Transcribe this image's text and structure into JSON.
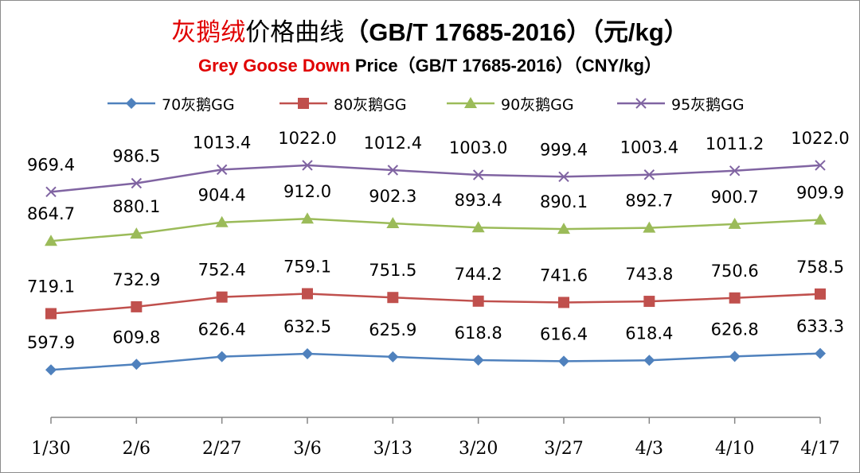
{
  "title_cn": {
    "accent": "灰鹅绒",
    "main": "价格曲线",
    "code": "（GB/T 17685-2016）（元/kg）"
  },
  "title_en": {
    "accent": "Grey Goose Down",
    "main": " Price（GB/T 17685-2016）（CNY/kg）"
  },
  "chart_data": {
    "type": "line",
    "categories": [
      "1/30",
      "2/6",
      "2/27",
      "3/6",
      "3/13",
      "3/20",
      "3/27",
      "4/3",
      "4/10",
      "4/17"
    ],
    "series": [
      {
        "name": "70灰鹅GG",
        "color": "#4f81bd",
        "marker": "diamond",
        "values": [
          597.9,
          609.8,
          626.4,
          632.5,
          625.9,
          618.8,
          616.4,
          618.4,
          626.8,
          633.3
        ]
      },
      {
        "name": "80灰鹅GG",
        "color": "#c0504d",
        "marker": "square",
        "values": [
          719.1,
          732.9,
          752.4,
          759.1,
          751.5,
          744.2,
          741.6,
          743.8,
          750.6,
          758.5
        ]
      },
      {
        "name": "90灰鹅GG",
        "color": "#9bbb59",
        "marker": "triangle",
        "values": [
          864.7,
          880.1,
          904.4,
          912.0,
          902.3,
          893.4,
          890.1,
          892.7,
          900.7,
          909.9
        ]
      },
      {
        "name": "95灰鹅GG",
        "color": "#8064a2",
        "marker": "x",
        "values": [
          969.4,
          986.5,
          1013.4,
          1022.0,
          1012.4,
          1003.0,
          999.4,
          1003.4,
          1011.2,
          1022.0
        ]
      }
    ],
    "legend_position": "top",
    "grid": false,
    "y_axis_visible": false,
    "data_labels": true
  }
}
